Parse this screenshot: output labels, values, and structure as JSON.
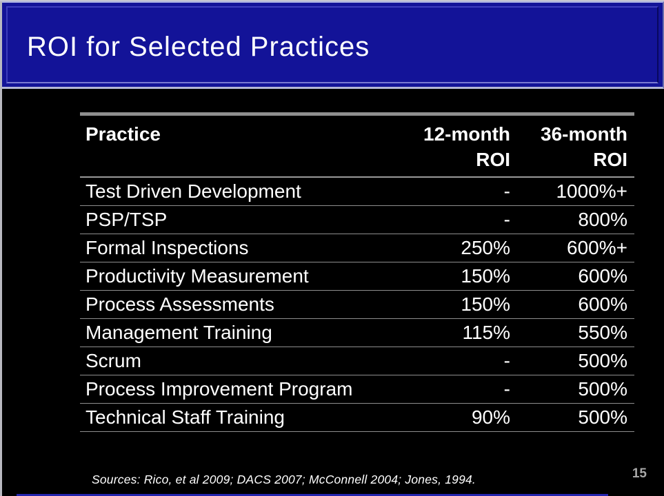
{
  "slide": {
    "title": "ROI for Selected Practices",
    "sources": "Sources: Rico, et al 2009;  DACS 2007; McConnell 2004; Jones, 1994.",
    "page_number": "15",
    "colors": {
      "background": "#000000",
      "title_bar_blue": "#131398",
      "bevel_highlight": "#A9B0E2",
      "bevel_bottom_light": "#B5B8D6",
      "divider_gray": "#8F8F8F",
      "text_white": "#FFFFFF",
      "page_number_gray": "#A8A8A8",
      "bottom_accent_blue": "#2525AE"
    }
  },
  "table": {
    "header": {
      "practice": "Practice",
      "col12": [
        "12-month",
        "ROI"
      ],
      "col36": [
        "36-month",
        "ROI"
      ]
    },
    "rows": [
      {
        "practice": "Test Driven Development",
        "roi_12": "-",
        "roi_36": "1000%+"
      },
      {
        "practice": "PSP/TSP",
        "roi_12": "-",
        "roi_36": "800%"
      },
      {
        "practice": "Formal Inspections",
        "roi_12": "250%",
        "roi_36": "600%+"
      },
      {
        "practice": "Productivity Measurement",
        "roi_12": "150%",
        "roi_36": "600%"
      },
      {
        "practice": "Process Assessments",
        "roi_12": "150%",
        "roi_36": "600%"
      },
      {
        "practice": "Management Training",
        "roi_12": "115%",
        "roi_36": "550%"
      },
      {
        "practice": "Scrum",
        "roi_12": "-",
        "roi_36": "500%"
      },
      {
        "practice": "Process Improvement Program",
        "roi_12": "-",
        "roi_36": "500%"
      },
      {
        "practice": "Technical Staff Training",
        "roi_12": "90%",
        "roi_36": "500%"
      }
    ]
  }
}
